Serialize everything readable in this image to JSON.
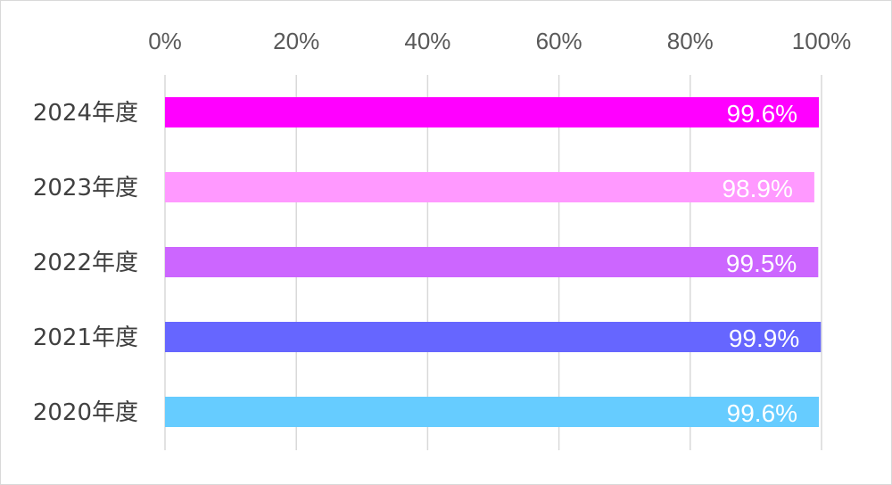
{
  "chart_data": {
    "type": "bar",
    "orientation": "horizontal",
    "categories": [
      "2024年度",
      "2023年度",
      "2022年度",
      "2021年度",
      "2020年度"
    ],
    "values": [
      99.6,
      98.9,
      99.5,
      99.9,
      99.6
    ],
    "value_labels": [
      "99.6%",
      "98.9%",
      "99.5%",
      "99.9%",
      "99.6%"
    ],
    "colors": [
      "#ff00ff",
      "#ff99ff",
      "#cc66ff",
      "#6666ff",
      "#66ccff"
    ],
    "xlim": [
      0,
      100
    ],
    "x_ticks": [
      0,
      20,
      40,
      60,
      80,
      100
    ],
    "x_tick_labels": [
      "0%",
      "20%",
      "40%",
      "60%",
      "80%",
      "100%"
    ],
    "x_axis_position": "top",
    "grid": true,
    "legend": "none",
    "title": "",
    "xlabel": "",
    "ylabel": ""
  }
}
